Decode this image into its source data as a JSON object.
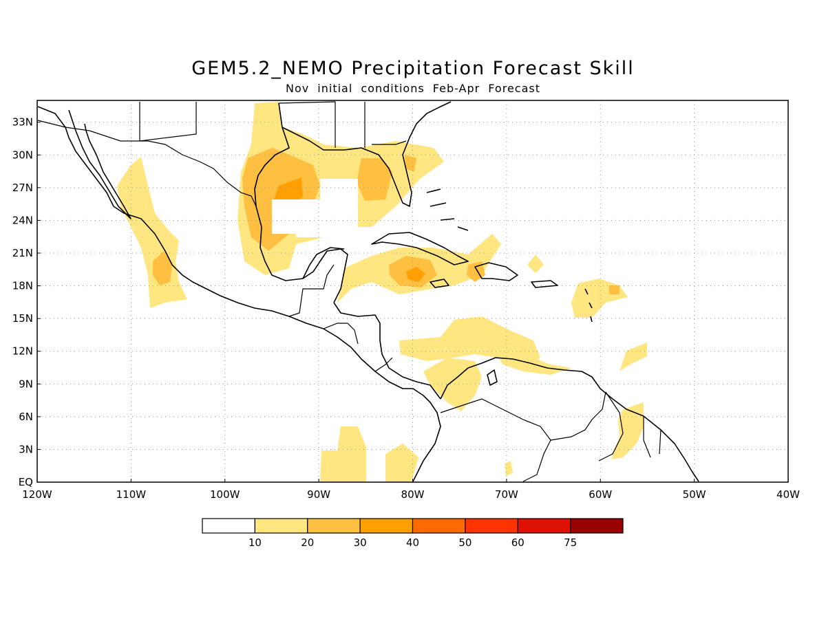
{
  "title": "GEM5.2_NEMO Precipitation Forecast Skill",
  "subtitle": "Nov initial conditions  Feb-Apr Forecast",
  "map": {
    "lon_range": [
      -120,
      -40
    ],
    "lat_range": [
      0,
      35
    ],
    "lat_labels": [
      "EQ",
      "3N",
      "6N",
      "9N",
      "12N",
      "15N",
      "18N",
      "21N",
      "24N",
      "27N",
      "30N",
      "33N"
    ],
    "lon_labels": [
      "120W",
      "110W",
      "100W",
      "90W",
      "80W",
      "70W",
      "60W",
      "50W",
      "40W"
    ],
    "grid": "dotted"
  },
  "colorbar": {
    "labels": [
      "10",
      "20",
      "30",
      "40",
      "50",
      "60",
      "75"
    ],
    "colors": [
      "#ffffff",
      "#ffe680",
      "#ffbf40",
      "#ff9f00",
      "#ff6a00",
      "#ff3300",
      "#dd1100",
      "#990000"
    ]
  }
}
